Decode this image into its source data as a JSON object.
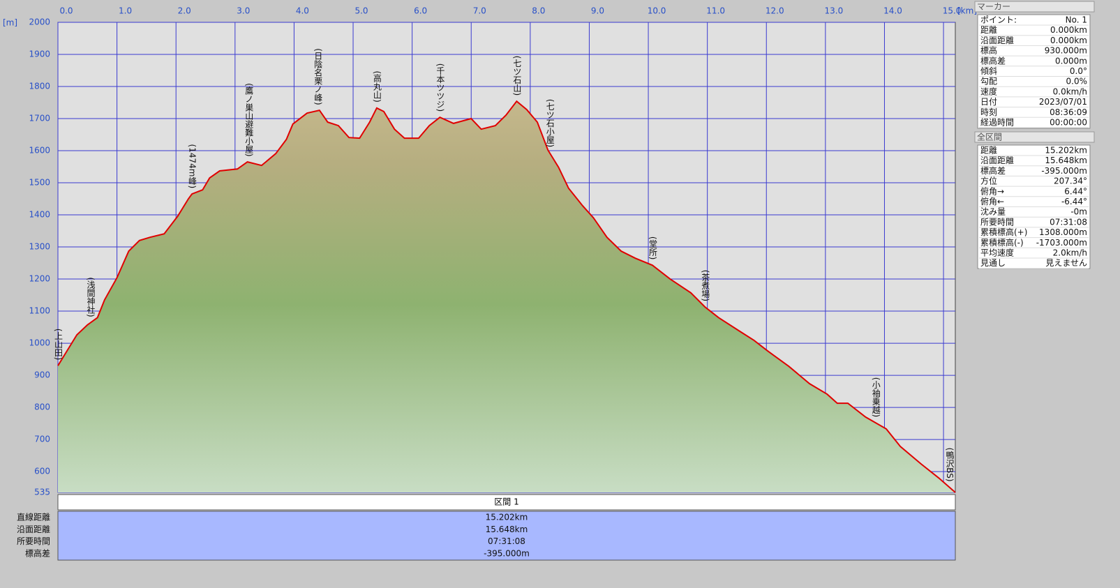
{
  "chart_data": {
    "type": "area",
    "xlabel": "[km]",
    "ylabel": "[m]",
    "color": "#e00000",
    "x": [
      0,
      0.32,
      0.5,
      0.67,
      0.79,
      1.0,
      1.2,
      1.38,
      1.56,
      1.8,
      2.03,
      2.21,
      2.27,
      2.45,
      2.57,
      2.74,
      3.04,
      3.21,
      3.45,
      3.69,
      3.87,
      3.98,
      4.22,
      4.43,
      4.57,
      4.75,
      4.93,
      5.11,
      5.28,
      5.4,
      5.52,
      5.7,
      5.87,
      6.11,
      6.29,
      6.47,
      6.7,
      7.0,
      7.17,
      7.41,
      7.59,
      7.77,
      7.94,
      8.12,
      8.3,
      8.48,
      8.65,
      8.89,
      9.07,
      9.3,
      9.54,
      9.78,
      10.07,
      10.37,
      10.72,
      10.96,
      11.19,
      11.55,
      11.79,
      12.02,
      12.38,
      12.73,
      13.03,
      13.2,
      13.38,
      13.68,
      14.03,
      14.27,
      14.62,
      14.92,
      15.2
    ],
    "values": [
      930,
      1026,
      1057,
      1080,
      1135,
      1204,
      1287,
      1320,
      1330,
      1341,
      1396,
      1450,
      1465,
      1478,
      1515,
      1537,
      1543,
      1565,
      1554,
      1591,
      1635,
      1683,
      1717,
      1726,
      1689,
      1678,
      1641,
      1639,
      1689,
      1733,
      1722,
      1667,
      1639,
      1639,
      1678,
      1704,
      1685,
      1700,
      1667,
      1678,
      1711,
      1754,
      1728,
      1689,
      1602,
      1548,
      1483,
      1428,
      1391,
      1330,
      1287,
      1265,
      1243,
      1200,
      1157,
      1113,
      1080,
      1037,
      1009,
      976,
      928,
      874,
      841,
      813,
      813,
      770,
      733,
      678,
      624,
      580,
      535
    ],
    "xlim": [
      0,
      15.2
    ],
    "ylim": [
      535,
      2000
    ],
    "xticks": [
      {
        "value": 0,
        "label": "0.0"
      },
      {
        "value": 1,
        "label": "1.0"
      },
      {
        "value": 2,
        "label": "2.0"
      },
      {
        "value": 3,
        "label": "3.0"
      },
      {
        "value": 4,
        "label": "4.0"
      },
      {
        "value": 5,
        "label": "5.0"
      },
      {
        "value": 6,
        "label": "6.0"
      },
      {
        "value": 7,
        "label": "7.0"
      },
      {
        "value": 8,
        "label": "8.0"
      },
      {
        "value": 9,
        "label": "9.0"
      },
      {
        "value": 10,
        "label": "10.0"
      },
      {
        "value": 11,
        "label": "11.0"
      },
      {
        "value": 12,
        "label": "12.0"
      },
      {
        "value": 13,
        "label": "13.0"
      },
      {
        "value": 14,
        "label": "14.0"
      },
      {
        "value": 15,
        "label": "15.0"
      }
    ],
    "yticks": [
      535,
      600,
      700,
      800,
      900,
      1000,
      1100,
      1200,
      1300,
      1400,
      1500,
      1600,
      1700,
      1800,
      1900,
      2000
    ],
    "grid": true,
    "annotations": [
      {
        "text": "(上山田)",
        "x": 0
      },
      {
        "text": "(浅間神社)",
        "x": 0.55
      },
      {
        "text": "(1474m峰)",
        "x": 2.27
      },
      {
        "text": "(鷹ノ巣山避難小屋)",
        "x": 3.23
      },
      {
        "text": "(日陰名栗ノ峰)",
        "x": 4.4
      },
      {
        "text": "(高丸山)",
        "x": 5.4
      },
      {
        "text": "(千本ツツジ)",
        "x": 6.47
      },
      {
        "text": "(七ツ石山)",
        "x": 7.77
      },
      {
        "text": "(七ツ石小屋)",
        "x": 8.33
      },
      {
        "text": "(堂所)",
        "x": 10.07
      },
      {
        "text": "(茶煮場)",
        "x": 10.96
      },
      {
        "text": "(小袖乗越)",
        "x": 13.85
      },
      {
        "text": "(鴨沢BS)",
        "x": 15.1
      }
    ]
  },
  "marker_panel": {
    "title": "マーカー",
    "rows": [
      [
        "ポイント:",
        "No. 1"
      ],
      [
        "距離",
        "0.000km"
      ],
      [
        "沿面距離",
        "0.000km"
      ],
      [
        "標高",
        "930.000m"
      ],
      [
        "標高差",
        "0.000m"
      ],
      [
        "傾斜",
        "0.0°"
      ],
      [
        "勾配",
        "0.0%"
      ],
      [
        "速度",
        "0.0km/h"
      ],
      [
        "日付",
        "2023/07/01"
      ],
      [
        "時刻",
        "08:36:09"
      ],
      [
        "経過時間",
        "00:00:00"
      ]
    ]
  },
  "section_panel": {
    "title": "全区間",
    "rows": [
      [
        "距離",
        "15.202km"
      ],
      [
        "沿面距離",
        "15.648km"
      ],
      [
        "標高差",
        "-395.000m"
      ],
      [
        "方位",
        "207.34°"
      ],
      [
        "俯角→",
        "6.44°"
      ],
      [
        "俯角←",
        "-6.44°"
      ],
      [
        "沈み量",
        "-0m"
      ],
      [
        "所要時間",
        "07:31:08"
      ],
      [
        "累積標高(+)",
        "1308.000m"
      ],
      [
        "累積標高(-)",
        "-1703.000m"
      ],
      [
        "平均速度",
        "2.0km/h"
      ],
      [
        "見通し",
        "見えません"
      ]
    ]
  },
  "summary": {
    "header": "区間 1",
    "rows": [
      [
        "直線距離",
        "15.202km"
      ],
      [
        "沿面距離",
        "15.648km"
      ],
      [
        "所要時間",
        "07:31:08"
      ],
      [
        "標高差",
        "-395.000m"
      ]
    ]
  }
}
